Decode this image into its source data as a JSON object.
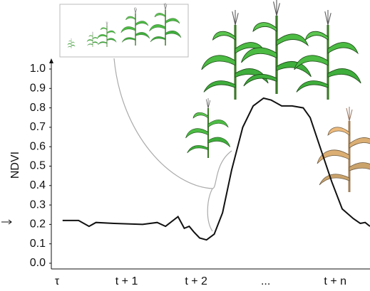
{
  "chart_data": {
    "type": "line",
    "y_label": "NDVI",
    "ylim": [
      0,
      1
    ],
    "yticks": [
      {
        "value": 0,
        "label": "0.0"
      },
      0.1,
      0.2,
      0.3,
      0.4,
      0.5,
      0.6,
      0.7,
      0.8,
      0.9,
      {
        "value": 1,
        "label": "1.0"
      }
    ],
    "xlim": [
      0,
      4.5
    ],
    "xticks": [
      {
        "value": 0,
        "label": "τ"
      },
      {
        "value": 1,
        "label": "t + 1"
      },
      {
        "value": 2,
        "label": "t + 2"
      },
      {
        "value": 3,
        "label": "..."
      },
      {
        "value": 4,
        "label": "t + n"
      }
    ],
    "series": [
      {
        "color": "#111111",
        "x": [
          0.08,
          0.31,
          0.46,
          0.56,
          0.82,
          1.23,
          1.44,
          1.56,
          1.74,
          1.83,
          1.9,
          1.97,
          2.05,
          2.15,
          2.26,
          2.38,
          2.51,
          2.67,
          2.82,
          2.97,
          3.08,
          3.23,
          3.38,
          3.54,
          3.64,
          3.79,
          3.95,
          4.1,
          4.26,
          4.36,
          4.43,
          4.5
        ],
        "values": [
          0.22,
          0.22,
          0.19,
          0.21,
          0.205,
          0.2,
          0.21,
          0.19,
          0.24,
          0.18,
          0.19,
          0.16,
          0.13,
          0.12,
          0.15,
          0.26,
          0.48,
          0.7,
          0.81,
          0.85,
          0.84,
          0.81,
          0.81,
          0.8,
          0.75,
          0.59,
          0.42,
          0.28,
          0.23,
          0.205,
          0.21,
          0.19
        ]
      }
    ]
  }
}
